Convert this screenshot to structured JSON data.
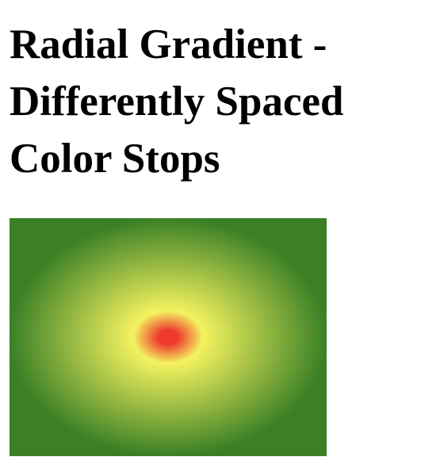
{
  "page": {
    "title_lines": [
      "Radial Gradient -",
      "Differently Spaced",
      "Color Stops"
    ]
  },
  "gradient": {
    "shape": "ellipse",
    "colors": {
      "inner": "#ee3a2f",
      "middle": "#f4f25f",
      "outer": "#3b8026"
    }
  }
}
